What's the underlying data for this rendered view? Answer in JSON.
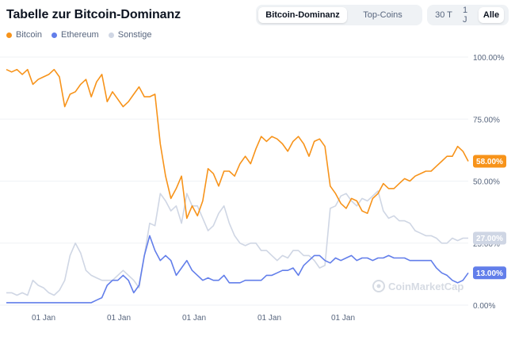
{
  "header": {
    "title": "Tabelle zur Bitcoin-Dominanz",
    "tabs": [
      {
        "label": "Bitcoin-Dominanz",
        "active": true
      },
      {
        "label": "Top-Coins",
        "active": false
      }
    ],
    "ranges": [
      {
        "label": "30 T",
        "active": false
      },
      {
        "label": "1 J",
        "active": false
      },
      {
        "label": "Alle",
        "active": true
      }
    ]
  },
  "watermark": "CoinMarketCap",
  "chart_data": {
    "type": "line",
    "yticks": [
      "100.00%",
      "75.00%",
      "50.00%",
      "25.00%",
      "0.00%"
    ],
    "ylim": [
      0,
      100
    ],
    "xticks": [
      "01 Jan",
      "01 Jan",
      "01 Jan",
      "01 Jan",
      "01 Jan"
    ],
    "series": [
      {
        "name": "Bitcoin",
        "color": "#f7931a",
        "end_label": "58.00%",
        "values": [
          95,
          94,
          95,
          93,
          95,
          89,
          91,
          92,
          93,
          95,
          92,
          80,
          85,
          86,
          89,
          91,
          84,
          90,
          93,
          82,
          86,
          83,
          80,
          82,
          85,
          88,
          84,
          84,
          85,
          65,
          52,
          43,
          47,
          52,
          35,
          40,
          36,
          42,
          55,
          53,
          48,
          54,
          54,
          52,
          57,
          60,
          57,
          63,
          68,
          66,
          68,
          67,
          65,
          62,
          66,
          68,
          65,
          60,
          66,
          67,
          64,
          48,
          45,
          41,
          39,
          43,
          42,
          38,
          37,
          43,
          45,
          49,
          47,
          47,
          49,
          51,
          50,
          52,
          53,
          54,
          54,
          56,
          58,
          60,
          60,
          64,
          62,
          58
        ]
      },
      {
        "name": "Ethereum",
        "color": "#627eea",
        "end_label": "13.00%",
        "values": [
          1,
          1,
          1,
          1,
          1,
          1,
          1,
          1,
          1,
          1,
          1,
          1,
          1,
          1,
          1,
          1,
          1,
          2,
          3,
          8,
          10,
          10,
          12,
          10,
          5,
          8,
          20,
          28,
          22,
          18,
          20,
          18,
          12,
          15,
          18,
          14,
          12,
          10,
          11,
          10,
          10,
          12,
          9,
          9,
          9,
          10,
          10,
          10,
          10,
          12,
          12,
          13,
          14,
          14,
          15,
          12,
          16,
          18,
          20,
          20,
          18,
          17,
          19,
          18,
          19,
          20,
          18,
          19,
          19,
          18,
          19,
          19,
          20,
          19,
          19,
          19,
          18,
          18,
          18,
          18,
          18,
          15,
          13,
          12,
          10,
          9,
          10,
          13
        ]
      },
      {
        "name": "Sonstige",
        "color": "#cfd6e4",
        "end_label": "27.00%",
        "values": [
          5,
          5,
          4,
          5,
          4,
          10,
          8,
          7,
          5,
          4,
          6,
          10,
          20,
          25,
          21,
          14,
          12,
          11,
          10,
          10,
          10,
          12,
          14,
          12,
          10,
          7,
          20,
          33,
          32,
          45,
          42,
          38,
          40,
          33,
          45,
          40,
          40,
          35,
          30,
          32,
          37,
          40,
          33,
          28,
          25,
          24,
          25,
          25,
          22,
          22,
          20,
          18,
          20,
          19,
          22,
          22,
          20,
          20,
          18,
          15,
          16,
          39,
          40,
          44,
          45,
          42,
          40,
          43,
          42,
          44,
          46,
          38,
          35,
          36,
          34,
          34,
          33,
          30,
          29,
          28,
          28,
          27,
          25,
          25,
          27,
          26,
          27,
          27
        ]
      }
    ]
  }
}
